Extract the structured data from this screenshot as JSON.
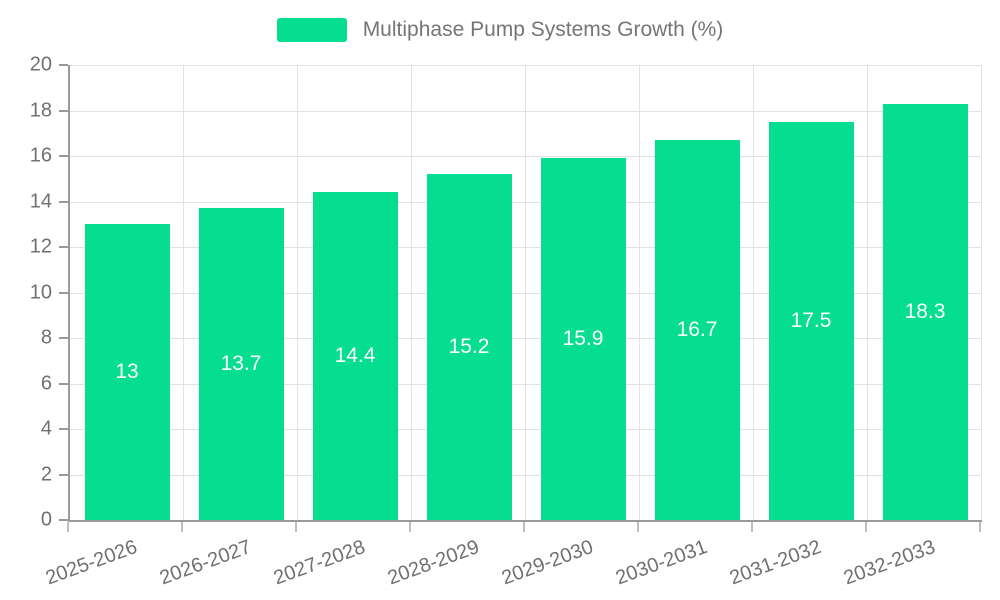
{
  "legend": {
    "label": "Multiphase Pump Systems Growth (%)"
  },
  "colors": {
    "bar": "#05dd90",
    "grid": "#e2e2e2",
    "axis": "#9a9a9a",
    "tick_label": "#707070",
    "value_label": "#ffffff"
  },
  "chart_data": {
    "type": "bar",
    "title": "Multiphase Pump Systems Growth (%)",
    "categories": [
      "2025-2026",
      "2026-2027",
      "2027-2028",
      "2028-2029",
      "2029-2030",
      "2030-2031",
      "2031-2032",
      "2032-2033"
    ],
    "values": [
      13,
      13.7,
      14.4,
      15.2,
      15.9,
      16.7,
      17.5,
      18.3
    ],
    "value_labels": [
      "13",
      "13.7",
      "14.4",
      "15.2",
      "15.9",
      "16.7",
      "17.5",
      "18.3"
    ],
    "xlabel": "",
    "ylabel": "",
    "ylim": [
      0,
      20
    ],
    "ytick_step": 2,
    "yticks": [
      0,
      2,
      4,
      6,
      8,
      10,
      12,
      14,
      16,
      18,
      20
    ],
    "grid": true,
    "legend_position": "top",
    "bar_label_position": "inside-center"
  }
}
